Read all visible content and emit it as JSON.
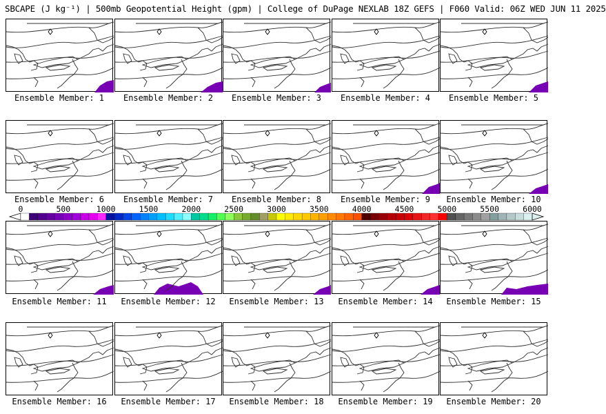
{
  "title": "SBCAPE (J kg⁻¹) | 500mb Geopotential Height (gpm) | College of DuPage NEXLAB 18Z GEFS | F060 Valid: 06Z WED JUN 11 2025",
  "member_prefix": "Ensemble Member: ",
  "members": [
    {
      "label": "Ensemble Member: 1"
    },
    {
      "label": "Ensemble Member: 2"
    },
    {
      "label": "Ensemble Member: 3"
    },
    {
      "label": "Ensemble Member: 4"
    },
    {
      "label": "Ensemble Member: 5"
    },
    {
      "label": "Ensemble Member: 6"
    },
    {
      "label": "Ensemble Member: 7"
    },
    {
      "label": "Ensemble Member: 8"
    },
    {
      "label": "Ensemble Member: 9"
    },
    {
      "label": "Ensemble Member: 10"
    },
    {
      "label": "Ensemble Member: 11"
    },
    {
      "label": "Ensemble Member: 12"
    },
    {
      "label": "Ensemble Member: 13"
    },
    {
      "label": "Ensemble Member: 14"
    },
    {
      "label": "Ensemble Member: 15"
    },
    {
      "label": "Ensemble Member: 16"
    },
    {
      "label": "Ensemble Member: 17"
    },
    {
      "label": "Ensemble Member: 18"
    },
    {
      "label": "Ensemble Member: 19"
    },
    {
      "label": "Ensemble Member: 20"
    }
  ],
  "colorbar": {
    "ticks": [
      "0",
      "500",
      "1000",
      "1500",
      "2000",
      "2500",
      "3000",
      "3500",
      "4000",
      "4500",
      "5000",
      "5500",
      "6000"
    ],
    "colors": [
      "#ffffff",
      "#3c0078",
      "#50008c",
      "#6400a0",
      "#7800b4",
      "#8c00c8",
      "#a000dc",
      "#c800e6",
      "#e600f0",
      "#ff28ff",
      "#0014a0",
      "#0028c8",
      "#0046e6",
      "#0064ff",
      "#0082ff",
      "#00a0ff",
      "#00beff",
      "#1edcff",
      "#50f0ff",
      "#8cffff",
      "#00c8a0",
      "#00dc8c",
      "#14f064",
      "#50ff50",
      "#8cff5a",
      "#8cc83c",
      "#78aa32",
      "#648c28",
      "#a0a064",
      "#c8c800",
      "#ffff00",
      "#ffeb00",
      "#ffd700",
      "#ffc800",
      "#ffb400",
      "#ffa000",
      "#ff8c00",
      "#ff7800",
      "#ff6400",
      "#ff5000",
      "#500000",
      "#780000",
      "#960000",
      "#b40000",
      "#c80000",
      "#dc0000",
      "#e61414",
      "#f02828",
      "#ff3232",
      "#ff0000",
      "#505050",
      "#646464",
      "#787878",
      "#8c8c8c",
      "#a0a0a0",
      "#82a0a0",
      "#a0b4b4",
      "#b4c8c8",
      "#c8dcdc",
      "#dcf0f0"
    ]
  }
}
